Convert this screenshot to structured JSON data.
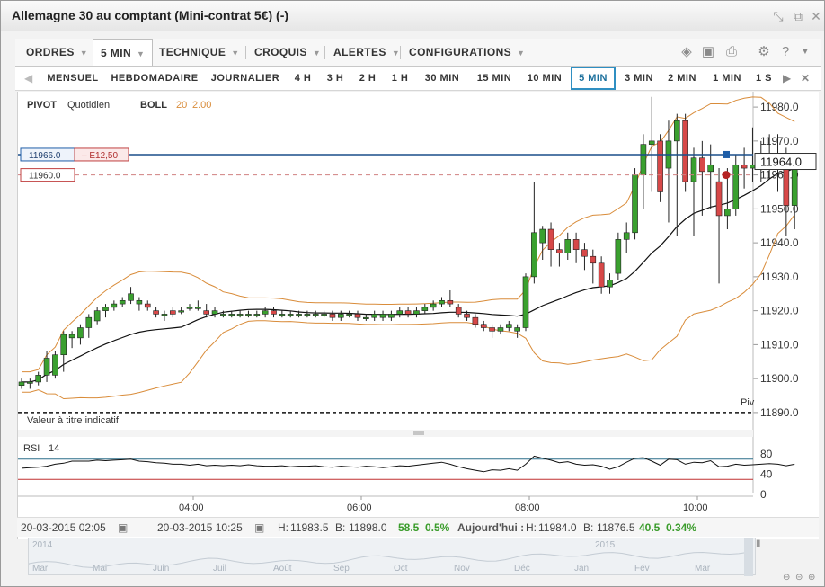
{
  "window": {
    "title": "Allemagne 30 au comptant (Mini-contrat 5€) (-)",
    "icons": [
      "resize-icon",
      "popout-icon",
      "close-icon"
    ]
  },
  "menubar": {
    "items": [
      {
        "label": "ORDRES",
        "caret": "▼"
      },
      {
        "label": "5 MIN",
        "caret": "▼"
      },
      {
        "label": "TECHNIQUE",
        "caret": "▼"
      },
      {
        "label": "CROQUIS",
        "caret": "▼"
      },
      {
        "label": "ALERTES",
        "caret": "▼"
      },
      {
        "label": "CONFIGURATIONS",
        "caret": "▼"
      }
    ],
    "tool_icons": [
      "layers-icon",
      "image-icon",
      "print-icon",
      "gear-icon",
      "help-icon",
      "chevron-down-icon"
    ]
  },
  "periods": {
    "items": [
      "MENSUEL",
      "HEBDOMADAIRE",
      "JOURNALIER",
      "4 H",
      "3 H",
      "2 H",
      "1 H",
      "30 MIN",
      "15 MIN",
      "10 MIN",
      "5 MIN",
      "3 MIN",
      "2 MIN",
      "1 MIN",
      "1 S"
    ],
    "selected": "5 MIN",
    "prev_arrow": "◀",
    "next_arrow": "▶",
    "close_icon": "✕"
  },
  "chart_data": {
    "type": "candlestick",
    "interval": "5 MIN",
    "ylim": [
      11886,
      11984
    ],
    "y_ticks": [
      "11980.0",
      "11970.0",
      "11960.0",
      "11950.0",
      "11940.0",
      "11930.0",
      "11920.0",
      "11910.0",
      "11900.0",
      "11890.0"
    ],
    "x_ticks": [
      "04:00",
      "06:00",
      "08:00",
      "10:00"
    ],
    "legend": {
      "pivot_label": "PIVOT",
      "pivot_value": "Quotidien",
      "boll_label": "BOLL",
      "boll_period": "20",
      "boll_dev": "2.00"
    },
    "current_price": "11964.0",
    "order_price": "11966.0",
    "order_tag": "– E12,50",
    "alert_price": "11960.0",
    "pivot_line_label": "Piv",
    "pivot_level": 11890,
    "notice": "Valeur à titre indicatif",
    "candles": [
      [
        11898,
        11900,
        11897,
        11899
      ],
      [
        11899,
        11900,
        11897,
        11899
      ],
      [
        11899,
        11902,
        11898,
        11901
      ],
      [
        11901,
        11908,
        11899,
        11906
      ],
      [
        11901,
        11908,
        11900,
        11907
      ],
      [
        11907,
        11914,
        11902,
        11913
      ],
      [
        11912,
        11914,
        11909,
        11913
      ],
      [
        11912,
        11916,
        11910,
        11915
      ],
      [
        11915,
        11919,
        11912,
        11918
      ],
      [
        11917,
        11921,
        11916,
        11920
      ],
      [
        11920,
        11922,
        11918,
        11921
      ],
      [
        11921,
        11923,
        11920,
        11922
      ],
      [
        11922,
        11924,
        11921,
        11923
      ],
      [
        11923,
        11927,
        11922,
        11925
      ],
      [
        11922,
        11924,
        11920,
        11923
      ],
      [
        11922,
        11923,
        11920,
        11921
      ],
      [
        11920,
        11921,
        11918,
        11919
      ],
      [
        11919,
        11920,
        11917,
        11919
      ],
      [
        11920,
        11921,
        11918,
        11919
      ],
      [
        11920,
        11921,
        11919,
        11920
      ],
      [
        11921,
        11922,
        11920,
        11921
      ],
      [
        11921,
        11923,
        11920,
        11921
      ],
      [
        11920,
        11922,
        11918,
        11919
      ],
      [
        11919,
        11921,
        11918,
        11920
      ],
      [
        11919,
        11920,
        11918,
        11919
      ],
      [
        11919,
        11920,
        11918,
        11919
      ],
      [
        11919,
        11920,
        11918,
        11919
      ],
      [
        11919,
        11920,
        11918,
        11919
      ],
      [
        11919,
        11920,
        11918,
        11919
      ],
      [
        11919,
        11921,
        11918,
        11920
      ],
      [
        11920,
        11921,
        11918,
        11919
      ],
      [
        11919,
        11920,
        11918,
        11919
      ],
      [
        11919,
        11920,
        11918,
        11919
      ],
      [
        11919,
        11920,
        11918,
        11919
      ],
      [
        11919,
        11920,
        11918,
        11919
      ],
      [
        11919,
        11920,
        11918,
        11919
      ],
      [
        11919,
        11920,
        11918,
        11919
      ],
      [
        11919,
        11920,
        11917,
        11918
      ],
      [
        11918,
        11920,
        11917,
        11919
      ],
      [
        11919,
        11920,
        11918,
        11919
      ],
      [
        11919,
        11920,
        11917,
        11918
      ],
      [
        11918,
        11919,
        11917,
        11918
      ],
      [
        11918,
        11920,
        11917,
        11919
      ],
      [
        11918,
        11920,
        11917,
        11919
      ],
      [
        11918,
        11920,
        11917,
        11919
      ],
      [
        11919,
        11921,
        11918,
        11920
      ],
      [
        11920,
        11921,
        11918,
        11919
      ],
      [
        11919,
        11921,
        11918,
        11920
      ],
      [
        11920,
        11922,
        11919,
        11921
      ],
      [
        11921,
        11923,
        11920,
        11922
      ],
      [
        11922,
        11924,
        11921,
        11923
      ],
      [
        11923,
        11926,
        11921,
        11922
      ],
      [
        11921,
        11922,
        11918,
        11919
      ],
      [
        11919,
        11920,
        11917,
        11918
      ],
      [
        11918,
        11919,
        11915,
        11916
      ],
      [
        11916,
        11917,
        11914,
        11915
      ],
      [
        11915,
        11916,
        11912,
        11914
      ],
      [
        11914,
        11916,
        11913,
        11915
      ],
      [
        11915,
        11917,
        11914,
        11916
      ],
      [
        11914,
        11916,
        11912,
        11915
      ],
      [
        11915,
        11931,
        11914,
        11930
      ],
      [
        11930,
        11958,
        11928,
        11943
      ],
      [
        11940,
        11945,
        11935,
        11944
      ],
      [
        11944,
        11946,
        11933,
        11938
      ],
      [
        11938,
        11940,
        11933,
        11937
      ],
      [
        11937,
        11943,
        11935,
        11941
      ],
      [
        11941,
        11943,
        11934,
        11938
      ],
      [
        11938,
        11940,
        11932,
        11936
      ],
      [
        11936,
        11938,
        11928,
        11934
      ],
      [
        11934,
        11936,
        11925,
        11927
      ],
      [
        11927,
        11931,
        11925,
        11929
      ],
      [
        11931,
        11943,
        11929,
        11941
      ],
      [
        11941,
        11946,
        11937,
        11943
      ],
      [
        11943,
        11962,
        11941,
        11960
      ],
      [
        11960,
        11972,
        11950,
        11969
      ],
      [
        11969,
        11983,
        11955,
        11970
      ],
      [
        11970,
        11972,
        11952,
        11955
      ],
      [
        11962,
        11976,
        11946,
        11970
      ],
      [
        11970,
        11978,
        11942,
        11976
      ],
      [
        11976,
        11978,
        11955,
        11958
      ],
      [
        11958,
        11968,
        11942,
        11965
      ],
      [
        11965,
        11970,
        11948,
        11961
      ],
      [
        11961,
        11969,
        11950,
        11963
      ],
      [
        11958,
        11962,
        11928,
        11948
      ],
      [
        11948,
        11962,
        11944,
        11950
      ],
      [
        11950,
        11966,
        11948,
        11963
      ],
      [
        11963,
        11968,
        11956,
        11962
      ],
      [
        11962,
        11974,
        11958,
        11963
      ],
      [
        11963,
        11970,
        11958,
        11964
      ],
      [
        11964,
        11972,
        11959,
        11966
      ],
      [
        11966,
        11972,
        11955,
        11962
      ],
      [
        11962,
        11968,
        11942,
        11951
      ],
      [
        11951,
        11966,
        11944,
        11964
      ]
    ],
    "rsi": {
      "label": "RSI",
      "period": "14",
      "ylim": [
        0,
        100
      ],
      "levels": [
        70,
        30
      ],
      "ticks": [
        "80",
        "40",
        "0"
      ],
      "values": [
        52,
        53,
        54,
        56,
        60,
        62,
        66,
        66,
        66,
        68,
        67,
        68,
        69,
        70,
        66,
        65,
        63,
        62,
        60,
        60,
        58,
        60,
        57,
        58,
        57,
        58,
        57,
        59,
        57,
        56,
        56,
        57,
        55,
        56,
        56,
        57,
        55,
        54,
        56,
        55,
        54,
        56,
        55,
        53,
        55,
        57,
        56,
        58,
        60,
        62,
        64,
        60,
        55,
        51,
        48,
        45,
        49,
        48,
        51,
        48,
        60,
        76,
        72,
        68,
        63,
        65,
        60,
        58,
        59,
        56,
        50,
        55,
        64,
        72,
        73,
        66,
        58,
        70,
        69,
        60,
        64,
        63,
        67,
        55,
        56,
        60,
        58,
        59,
        60,
        61,
        60,
        57,
        60
      ]
    }
  },
  "infobar": {
    "from_date": "20-03-2015 02:05",
    "to_date": "20-03-2015 10:25",
    "high_label": "H:",
    "high": "11983.5",
    "low_label": "B:",
    "low": "11898.0",
    "change": "58.5",
    "change_pct": "0.5%",
    "today_label": "Aujourd'hui :",
    "today_high_label": "H:",
    "today_high": "11984.0",
    "today_low_label": "B:",
    "today_low": "11876.5",
    "today_change": "40.5",
    "today_change_pct": "0.34%"
  },
  "navigator": {
    "years": [
      "2014",
      "2015"
    ],
    "months": [
      "Mar",
      "Mai",
      "Juin",
      "Juil",
      "Août",
      "Sep",
      "Oct",
      "Nov",
      "Déc",
      "Jan",
      "Fév",
      "Mar"
    ]
  },
  "colors": {
    "up": "#3aa02f",
    "down": "#d74848",
    "boll": "#d98c3a",
    "ma": "#111111",
    "price_line": "#1a4f8a",
    "alert": "#c04040",
    "accent": "#2f8fc2"
  }
}
